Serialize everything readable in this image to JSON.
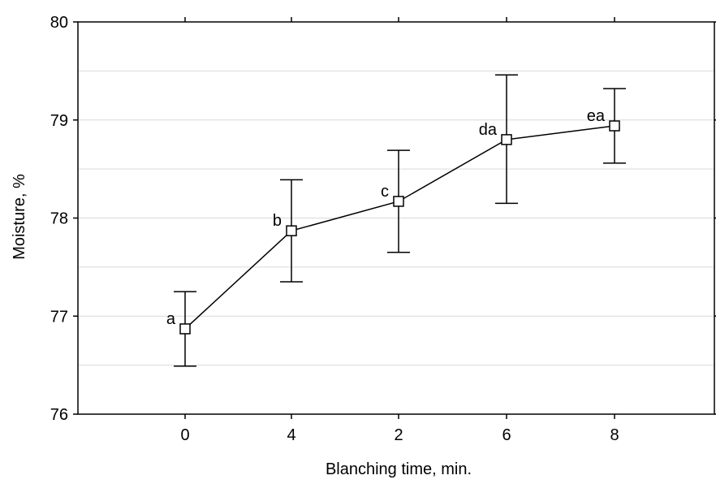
{
  "chart_data": {
    "type": "line",
    "categories": [
      "0",
      "4",
      "2",
      "6",
      "8"
    ],
    "series": [
      {
        "values": [
          76.87,
          77.87,
          78.17,
          78.8,
          78.94
        ],
        "error_low": [
          76.49,
          77.35,
          77.65,
          78.15,
          78.56
        ],
        "error_high": [
          77.25,
          78.39,
          78.69,
          79.46,
          79.32
        ],
        "point_labels": [
          "a",
          "b",
          "c",
          "da",
          "ea"
        ],
        "marker": "square",
        "color": "#000000"
      }
    ],
    "xlabel": "Blanching time, min.",
    "ylabel": "Moisture, %",
    "ylim": [
      76,
      80
    ],
    "yticks": [
      "76",
      "77",
      "78",
      "79",
      "80"
    ],
    "grid": "horizontal",
    "gridline_color": "#d9d9d9",
    "legend": "none"
  }
}
